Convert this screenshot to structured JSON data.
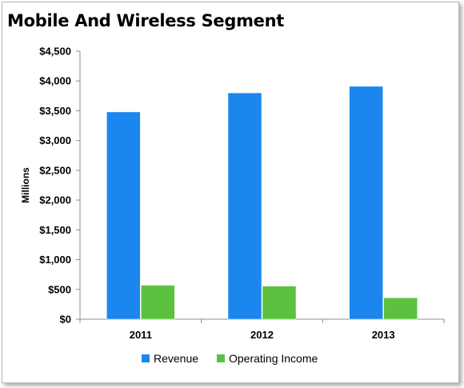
{
  "chart_data": {
    "type": "bar",
    "title": "Mobile And Wireless Segment",
    "ylabel": "Millions",
    "xlabel": "",
    "categories": [
      "2011",
      "2012",
      "2013"
    ],
    "series": [
      {
        "name": "Revenue",
        "values": [
          3480,
          3800,
          3910
        ],
        "color": "#1b87ee"
      },
      {
        "name": "Operating Income",
        "values": [
          570,
          555,
          360
        ],
        "color": "#5cc13e"
      }
    ],
    "ylim": [
      0,
      4500
    ],
    "yticks": [
      0,
      500,
      1000,
      1500,
      2000,
      2500,
      3000,
      3500,
      4000,
      4500
    ],
    "ytick_labels": [
      "$0",
      "$500",
      "$1,000",
      "$1,500",
      "$2,000",
      "$2,500",
      "$3,000",
      "$3,500",
      "$4,000",
      "$4,500"
    ],
    "grid": false,
    "legend": "bottom"
  }
}
